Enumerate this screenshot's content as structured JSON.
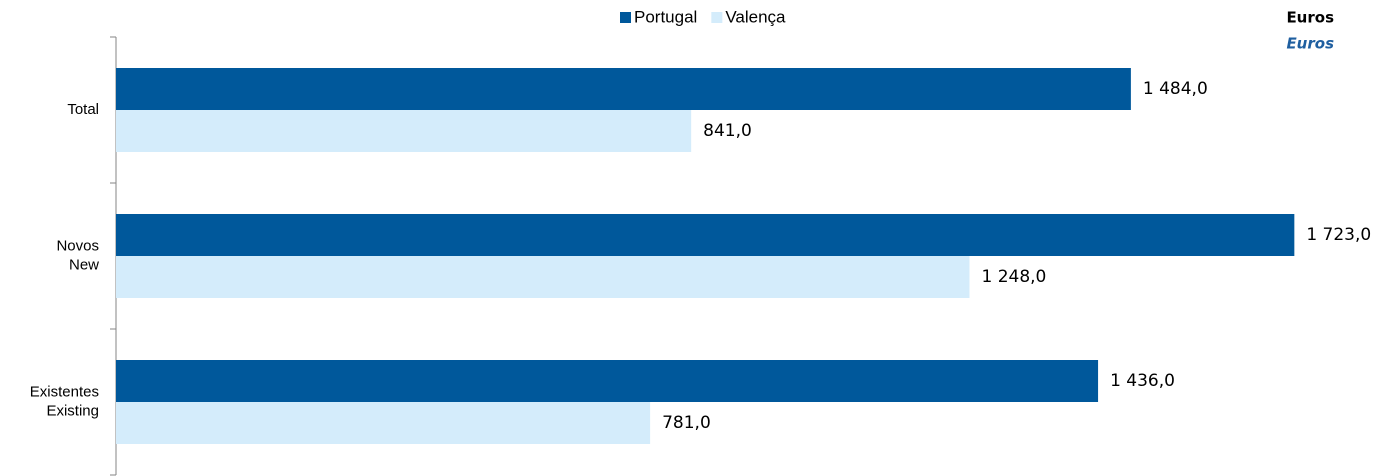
{
  "chart_data": {
    "type": "barh",
    "units": "Euros",
    "units_en": "Euros",
    "categories": [
      [
        "Total"
      ],
      [
        "Novos",
        "New"
      ],
      [
        "Existentes",
        "Existing"
      ]
    ],
    "series": [
      {
        "name": "Portugal",
        "color": "#00589b",
        "values": [
          1484.0,
          1723.0,
          1436.0
        ],
        "value_labels": [
          "1 484,0",
          "1 723,0",
          "1 436,0"
        ]
      },
      {
        "name": "Valença",
        "color": "#d4ecfb",
        "values": [
          841.0,
          1248.0,
          781.0
        ],
        "value_labels": [
          "841,0",
          "1 248,0",
          "781,0"
        ]
      }
    ],
    "xlim": [
      0,
      1800
    ]
  }
}
